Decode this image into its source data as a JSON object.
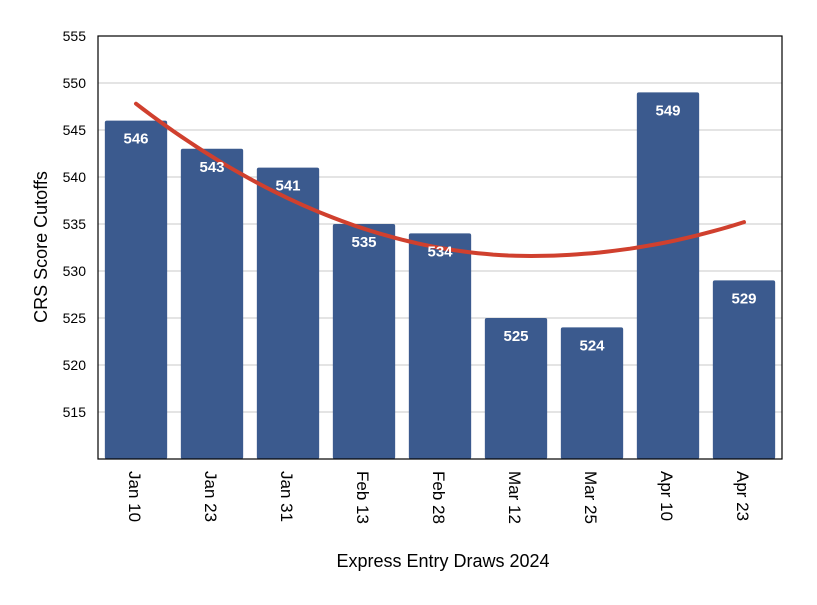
{
  "chart_data": {
    "type": "bar",
    "title": "",
    "xlabel": "Express Entry Draws 2024",
    "ylabel": "CRS Score Cutoffs",
    "categories": [
      "Jan 10",
      "Jan 23",
      "Jan 31",
      "Feb 13",
      "Feb 28",
      "Mar 12",
      "Mar 25",
      "Apr 10",
      "Apr 23"
    ],
    "values": [
      546,
      543,
      541,
      535,
      534,
      525,
      524,
      549,
      529
    ],
    "data_labels": [
      "546",
      "543",
      "541",
      "535",
      "534",
      "525",
      "524",
      "549",
      "529"
    ],
    "ylim": [
      510,
      555
    ],
    "yticks": [
      515,
      520,
      525,
      530,
      535,
      540,
      545,
      550,
      555
    ],
    "grid": true,
    "bar_color": "#3b5a8e",
    "trendline": {
      "type": "polynomial-2",
      "color": "#d0402e",
      "start": 547.8,
      "end": 535.2,
      "min": 531.6,
      "min_at_index": 5.2
    }
  }
}
